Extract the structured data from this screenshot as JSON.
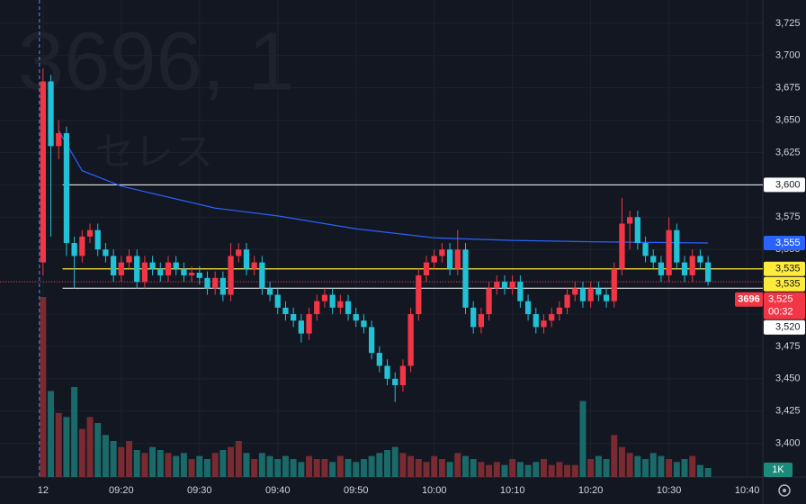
{
  "chart_data": {
    "type": "candlestick",
    "watermark": "3696, 1",
    "watermark_sub": "セレス",
    "grid": true,
    "up_color": "#f23645",
    "down_color": "#22c1d6",
    "up_volume_color": "#7a2a31",
    "down_volume_color": "#1b6a6a",
    "xlim": [
      -5.5,
      92
    ],
    "ylim": [
      3374,
      3743
    ],
    "xticks": [
      {
        "value": 0,
        "label": "12"
      },
      {
        "value": 10,
        "label": "09:20"
      },
      {
        "value": 20,
        "label": "09:30"
      },
      {
        "value": 30,
        "label": "09:40"
      },
      {
        "value": 40,
        "label": "09:50"
      },
      {
        "value": 50,
        "label": "10:00"
      },
      {
        "value": 60,
        "label": "10:10"
      },
      {
        "value": 70,
        "label": "10:20"
      },
      {
        "value": 80,
        "label": "10:30"
      },
      {
        "value": 90,
        "label": "10:40"
      }
    ],
    "yticks": [
      {
        "value": 3400,
        "label": "3,400"
      },
      {
        "value": 3425,
        "label": "3,425"
      },
      {
        "value": 3450,
        "label": "3,450"
      },
      {
        "value": 3475,
        "label": "3,475"
      },
      {
        "value": 3500,
        "label": "3,500"
      },
      {
        "value": 3525,
        "label": "3,525"
      },
      {
        "value": 3550,
        "label": "3,550"
      },
      {
        "value": 3575,
        "label": "3,575"
      },
      {
        "value": 3600,
        "label": "3,600"
      },
      {
        "value": 3625,
        "label": "3,625"
      },
      {
        "value": 3650,
        "label": "3,650"
      },
      {
        "value": 3675,
        "label": "3,675"
      },
      {
        "value": 3700,
        "label": "3,700"
      },
      {
        "value": 3725,
        "label": "3,725"
      }
    ],
    "open": [
      3540,
      3680,
      3630,
      3640,
      3555,
      3545,
      3560,
      3565,
      3550,
      3545,
      3530,
      3540,
      3545,
      3525,
      3540,
      3535,
      3530,
      3540,
      3535,
      3530,
      3532,
      3528,
      3520,
      3528,
      3515,
      3545,
      3550,
      3535,
      3540,
      3520,
      3515,
      3505,
      3500,
      3495,
      3485,
      3500,
      3510,
      3515,
      3505,
      3510,
      3500,
      3495,
      3490,
      3470,
      3460,
      3450,
      3445,
      3460,
      3500,
      3530,
      3540,
      3545,
      3550,
      3535,
      3550,
      3505,
      3490,
      3500,
      3520,
      3525,
      3520,
      3525,
      3510,
      3500,
      3490,
      3495,
      3500,
      3505,
      3515,
      3520,
      3510,
      3520,
      3515,
      3510,
      3535,
      3570,
      3575,
      3555,
      3545,
      3540,
      3530,
      3565,
      3540,
      3530,
      3545,
      3540
    ],
    "high": [
      3690,
      3685,
      3650,
      3645,
      3560,
      3565,
      3570,
      3570,
      3555,
      3550,
      3545,
      3550,
      3550,
      3545,
      3545,
      3540,
      3545,
      3545,
      3540,
      3537,
      3537,
      3533,
      3533,
      3533,
      3555,
      3555,
      3555,
      3545,
      3545,
      3525,
      3520,
      3510,
      3505,
      3500,
      3505,
      3515,
      3520,
      3520,
      3515,
      3515,
      3505,
      3500,
      3495,
      3475,
      3465,
      3455,
      3465,
      3505,
      3535,
      3545,
      3550,
      3555,
      3555,
      3565,
      3555,
      3510,
      3505,
      3525,
      3530,
      3530,
      3530,
      3530,
      3515,
      3505,
      3500,
      3505,
      3510,
      3520,
      3525,
      3525,
      3525,
      3525,
      3520,
      3540,
      3590,
      3580,
      3580,
      3560,
      3550,
      3545,
      3575,
      3570,
      3545,
      3550,
      3550,
      3545
    ],
    "low": [
      3530,
      3560,
      3620,
      3545,
      3520,
      3540,
      3555,
      3545,
      3540,
      3525,
      3525,
      3535,
      3520,
      3520,
      3530,
      3525,
      3525,
      3530,
      3525,
      3525,
      3523,
      3515,
      3515,
      3510,
      3510,
      3540,
      3530,
      3530,
      3515,
      3510,
      3500,
      3495,
      3490,
      3478,
      3480,
      3495,
      3505,
      3500,
      3500,
      3495,
      3490,
      3485,
      3465,
      3455,
      3445,
      3432,
      3440,
      3455,
      3495,
      3525,
      3535,
      3540,
      3530,
      3530,
      3500,
      3485,
      3485,
      3495,
      3515,
      3515,
      3515,
      3505,
      3495,
      3485,
      3485,
      3490,
      3495,
      3500,
      3510,
      3505,
      3505,
      3510,
      3505,
      3505,
      3530,
      3550,
      3550,
      3540,
      3535,
      3525,
      3525,
      3535,
      3525,
      3525,
      3535,
      3522
    ],
    "close": [
      3680,
      3630,
      3640,
      3555,
      3545,
      3560,
      3565,
      3550,
      3545,
      3530,
      3540,
      3545,
      3525,
      3540,
      3535,
      3530,
      3540,
      3535,
      3530,
      3532,
      3528,
      3520,
      3528,
      3515,
      3545,
      3550,
      3535,
      3540,
      3520,
      3515,
      3505,
      3500,
      3495,
      3485,
      3500,
      3510,
      3515,
      3505,
      3510,
      3500,
      3495,
      3490,
      3470,
      3460,
      3450,
      3445,
      3460,
      3500,
      3530,
      3540,
      3545,
      3550,
      3535,
      3550,
      3505,
      3490,
      3500,
      3520,
      3525,
      3520,
      3525,
      3510,
      3500,
      3490,
      3495,
      3500,
      3505,
      3515,
      3520,
      3510,
      3520,
      3515,
      3510,
      3535,
      3570,
      3575,
      3555,
      3545,
      3540,
      3530,
      3565,
      3540,
      3530,
      3545,
      3540,
      3525
    ],
    "volume": [
      9000,
      4300,
      3200,
      3000,
      4500,
      2400,
      3000,
      2700,
      2100,
      1800,
      1500,
      1800,
      1350,
      1200,
      1500,
      1350,
      1200,
      1050,
      1200,
      900,
      1050,
      900,
      1200,
      1350,
      1500,
      1800,
      1200,
      900,
      1200,
      1050,
      900,
      1050,
      900,
      750,
      1050,
      900,
      900,
      750,
      1050,
      900,
      750,
      900,
      1050,
      1200,
      1350,
      1500,
      1200,
      1050,
      900,
      750,
      1050,
      900,
      750,
      1200,
      1050,
      900,
      750,
      600,
      750,
      600,
      900,
      750,
      600,
      750,
      900,
      600,
      750,
      600,
      600,
      3800,
      900,
      1050,
      900,
      2100,
      1500,
      1200,
      1050,
      900,
      1200,
      1050,
      900,
      750,
      900,
      1050,
      600,
      450
    ],
    "volume_label": "1K",
    "ma": {
      "color": "#2962ff",
      "x": [
        2,
        5,
        10,
        22,
        30,
        40,
        50,
        60,
        70,
        85
      ],
      "values": [
        3642,
        3611,
        3599,
        3582,
        3576,
        3566,
        3559,
        3557,
        3556,
        3555
      ],
      "label": "3,555"
    },
    "levels": [
      {
        "value": 3600,
        "label": "3,600",
        "color": "#ffffff"
      },
      {
        "value": 3535,
        "label": "3,535",
        "color": "#ffeb3b"
      },
      {
        "value": 3535,
        "label": "3,535",
        "color": "#ffeb3b"
      },
      {
        "value": 3520,
        "label": "3,520",
        "color": "#ffffff"
      }
    ],
    "last_price": {
      "symbol": "3696",
      "value": 3525,
      "label": "3,525",
      "countdown": "00:32",
      "color": "#f23645"
    }
  }
}
